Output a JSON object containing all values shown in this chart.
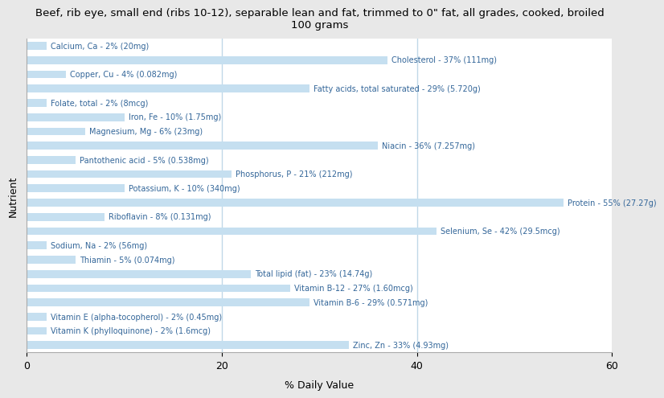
{
  "title": "Beef, rib eye, small end (ribs 10-12), separable lean and fat, trimmed to 0\" fat, all grades, cooked, broiled\n100 grams",
  "xlabel": "% Daily Value",
  "ylabel": "Nutrient",
  "xlim": [
    0,
    60
  ],
  "xticks": [
    0,
    20,
    40,
    60
  ],
  "bar_color": "#c5dff0",
  "background_color": "#e8e8e8",
  "plot_bg_color": "#ffffff",
  "grid_line_color": "#c0d8e8",
  "text_color": "#336699",
  "nutrients": [
    {
      "label": "Calcium, Ca - 2% (20mg)",
      "value": 2
    },
    {
      "label": "Cholesterol - 37% (111mg)",
      "value": 37
    },
    {
      "label": "Copper, Cu - 4% (0.082mg)",
      "value": 4
    },
    {
      "label": "Fatty acids, total saturated - 29% (5.720g)",
      "value": 29
    },
    {
      "label": "Folate, total - 2% (8mcg)",
      "value": 2
    },
    {
      "label": "Iron, Fe - 10% (1.75mg)",
      "value": 10
    },
    {
      "label": "Magnesium, Mg - 6% (23mg)",
      "value": 6
    },
    {
      "label": "Niacin - 36% (7.257mg)",
      "value": 36
    },
    {
      "label": "Pantothenic acid - 5% (0.538mg)",
      "value": 5
    },
    {
      "label": "Phosphorus, P - 21% (212mg)",
      "value": 21
    },
    {
      "label": "Potassium, K - 10% (340mg)",
      "value": 10
    },
    {
      "label": "Protein - 55% (27.27g)",
      "value": 55
    },
    {
      "label": "Riboflavin - 8% (0.131mg)",
      "value": 8
    },
    {
      "label": "Selenium, Se - 42% (29.5mcg)",
      "value": 42
    },
    {
      "label": "Sodium, Na - 2% (56mg)",
      "value": 2
    },
    {
      "label": "Thiamin - 5% (0.074mg)",
      "value": 5
    },
    {
      "label": "Total lipid (fat) - 23% (14.74g)",
      "value": 23
    },
    {
      "label": "Vitamin B-12 - 27% (1.60mcg)",
      "value": 27
    },
    {
      "label": "Vitamin B-6 - 29% (0.571mg)",
      "value": 29
    },
    {
      "label": "Vitamin E (alpha-tocopherol) - 2% (0.45mg)",
      "value": 2
    },
    {
      "label": "Vitamin K (phylloquinone) - 2% (1.6mcg)",
      "value": 2
    },
    {
      "label": "Zinc, Zn - 33% (4.93mg)",
      "value": 33
    }
  ]
}
